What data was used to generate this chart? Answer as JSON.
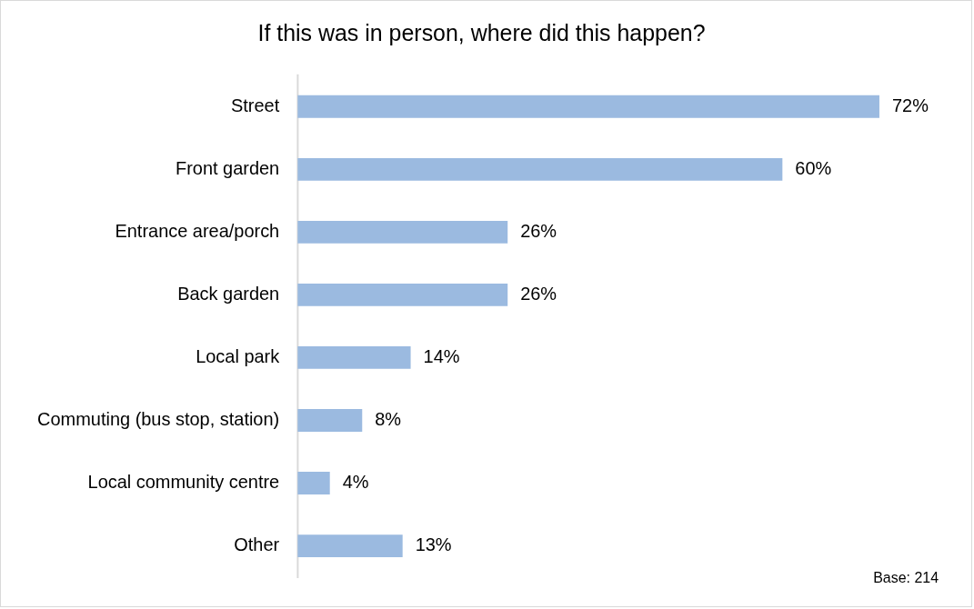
{
  "chart_data": {
    "type": "bar",
    "orientation": "horizontal",
    "title": "If this was in person, where did this happen?",
    "categories": [
      "Street",
      "Front garden",
      "Entrance area/porch",
      "Back garden",
      "Local park",
      "Commuting (bus stop, station)",
      "Local community centre",
      "Other"
    ],
    "values": [
      72,
      60,
      26,
      26,
      14,
      8,
      4,
      13
    ],
    "value_labels": [
      "72%",
      "60%",
      "26%",
      "26%",
      "14%",
      "8%",
      "4%",
      "13%"
    ],
    "color": "#9bbae0",
    "annotations": [
      "Base: 214"
    ],
    "legend": false
  }
}
